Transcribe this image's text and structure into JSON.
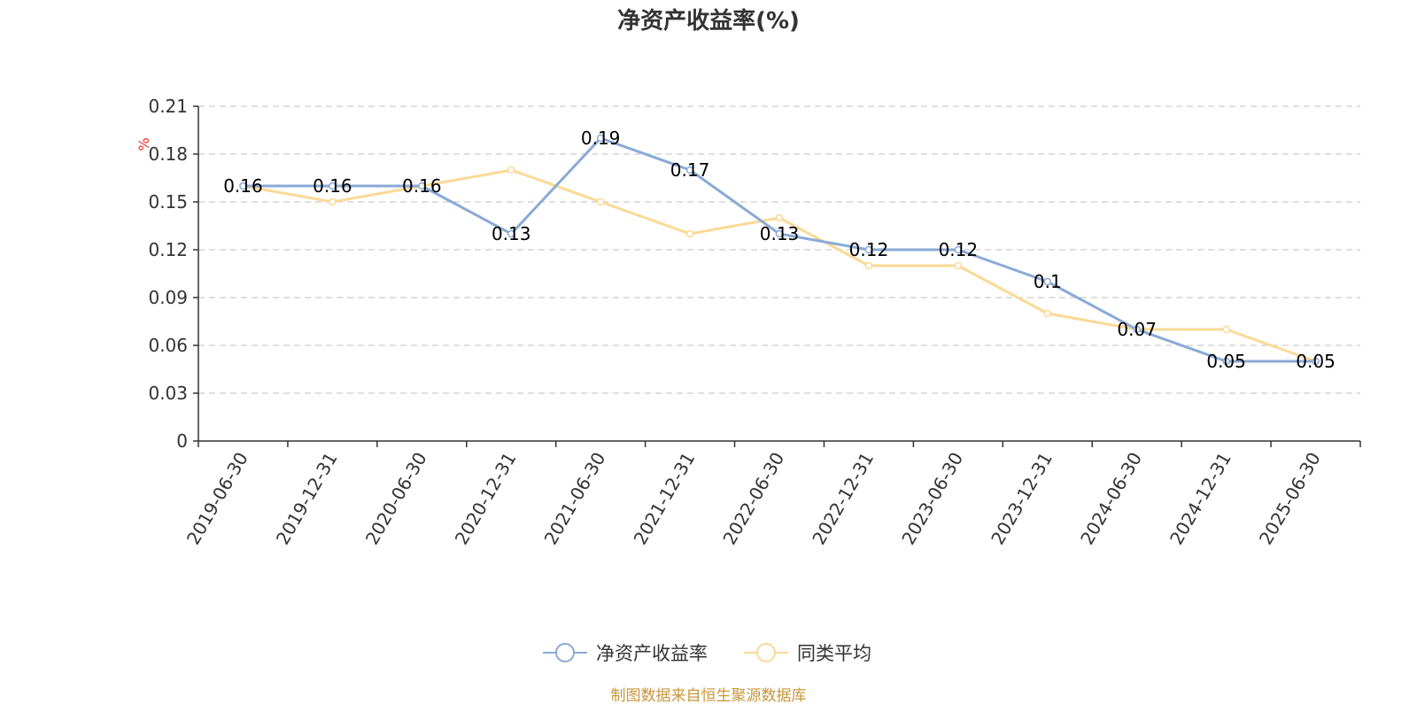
{
  "chart_data": {
    "type": "line",
    "title": "净资产收益率(%)",
    "ylabel": "%",
    "xlabel": "",
    "ylim": [
      0,
      0.21
    ],
    "yticks": [
      "0",
      "0.03",
      "0.06",
      "0.09",
      "0.12",
      "0.15",
      "0.18",
      "0.21"
    ],
    "categories": [
      "2019-06-30",
      "2019-12-31",
      "2020-06-30",
      "2020-12-31",
      "2021-06-30",
      "2021-12-31",
      "2022-06-30",
      "2022-12-31",
      "2023-06-30",
      "2023-12-31",
      "2024-06-30",
      "2024-12-31",
      "2025-06-30"
    ],
    "series": [
      {
        "name": "净资产收益率",
        "color": "#8aaad6",
        "values": [
          0.16,
          0.16,
          0.16,
          0.13,
          0.19,
          0.17,
          0.13,
          0.12,
          0.12,
          0.1,
          0.07,
          0.05,
          0.05
        ],
        "labels": [
          "0.16",
          "0.16",
          "0.16",
          "0.13",
          "0.19",
          "0.17",
          "0.13",
          "0.12",
          "0.12",
          "0.1",
          "0.07",
          "0.05",
          "0.05"
        ]
      },
      {
        "name": "同类平均",
        "color": "#fbd996",
        "values": [
          0.16,
          0.15,
          0.16,
          0.17,
          0.15,
          0.13,
          0.14,
          0.11,
          0.11,
          0.08,
          0.07,
          0.07,
          0.05
        ]
      }
    ],
    "grid": true,
    "legend_position": "bottom-center",
    "footer": "制图数据来自恒生聚源数据库"
  }
}
